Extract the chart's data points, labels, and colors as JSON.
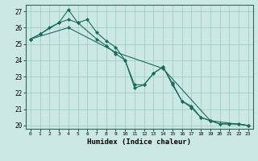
{
  "xlabel": "Humidex (Indice chaleur)",
  "ylabel": "",
  "xlim": [
    -0.5,
    23.5
  ],
  "ylim": [
    19.8,
    27.4
  ],
  "yticks": [
    20,
    21,
    22,
    23,
    24,
    25,
    26,
    27
  ],
  "xticks": [
    0,
    1,
    2,
    3,
    4,
    5,
    6,
    7,
    8,
    9,
    10,
    11,
    12,
    13,
    14,
    15,
    16,
    17,
    18,
    19,
    20,
    21,
    22,
    23
  ],
  "background_color": "#cce8e4",
  "grid_color": "#99ccbb",
  "line_color": "#1a6b5a",
  "line1_x": [
    0,
    1,
    2,
    3,
    4,
    5,
    6,
    7,
    8,
    9,
    10,
    11,
    12,
    13,
    14,
    15,
    16,
    17,
    18,
    19,
    20,
    21,
    22,
    23
  ],
  "line1_y": [
    25.3,
    25.6,
    26.0,
    26.3,
    27.1,
    26.3,
    26.5,
    25.7,
    25.2,
    24.8,
    24.0,
    22.3,
    22.5,
    23.2,
    23.6,
    22.6,
    21.5,
    21.2,
    20.5,
    20.3,
    20.1,
    20.1,
    20.1,
    20.0
  ],
  "line2_x": [
    0,
    1,
    3,
    4,
    5,
    7,
    8,
    9,
    10,
    11,
    12,
    13,
    14,
    15,
    16,
    17,
    18,
    19,
    20,
    21,
    22,
    23
  ],
  "line2_y": [
    25.3,
    25.6,
    26.3,
    26.5,
    26.3,
    25.3,
    24.9,
    24.4,
    24.0,
    22.5,
    22.5,
    23.2,
    23.6,
    22.5,
    21.5,
    21.1,
    20.5,
    20.3,
    20.1,
    20.1,
    20.1,
    20.0
  ],
  "line3_x": [
    0,
    4,
    9,
    14,
    19,
    23
  ],
  "line3_y": [
    25.3,
    26.0,
    24.5,
    23.5,
    20.3,
    20.0
  ]
}
